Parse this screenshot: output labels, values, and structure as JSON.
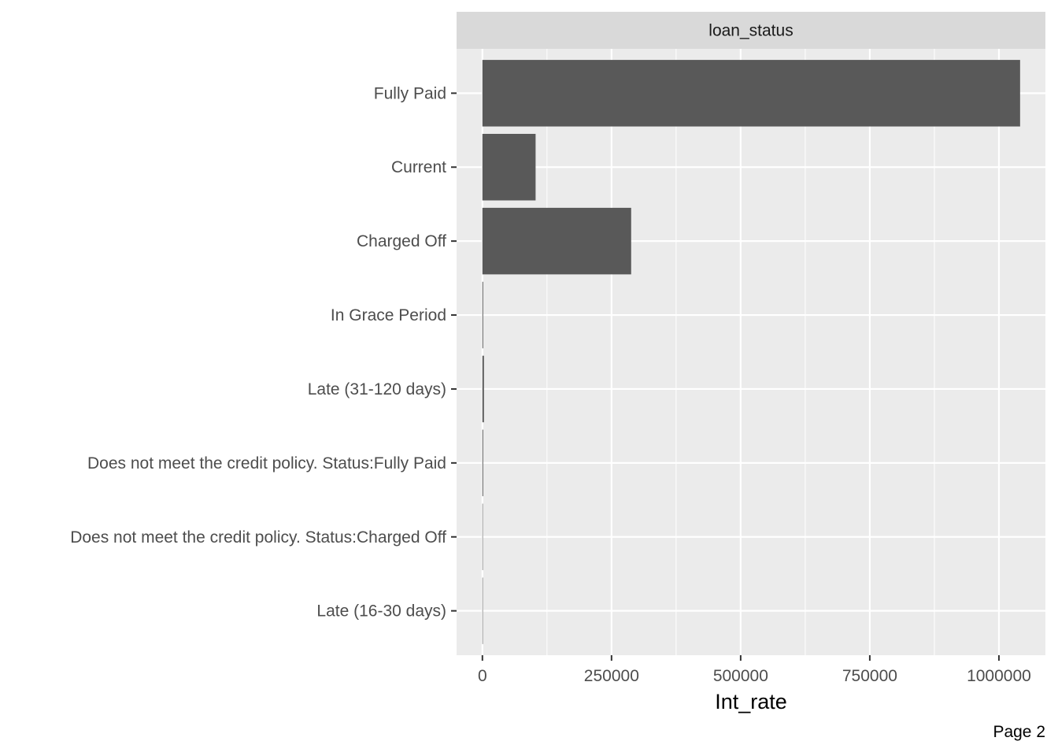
{
  "page_label": "Page 2",
  "chart_data": {
    "type": "bar",
    "orientation": "horizontal",
    "facet_label": "loan_status",
    "xlabel": "Int_rate",
    "ylabel": "",
    "categories": [
      "Fully Paid",
      "Current",
      "Charged Off",
      "In Grace Period",
      "Late (31-120 days)",
      "Does not meet the credit policy. Status:Fully Paid",
      "Does not meet the credit policy. Status:Charged Off",
      "Late (16-30 days)"
    ],
    "values": [
      1041000,
      103000,
      288000,
      1500,
      3000,
      1500,
      400,
      200
    ],
    "xlim": [
      -50000,
      1090000
    ],
    "x_ticks": [
      0,
      250000,
      500000,
      750000,
      1000000
    ],
    "x_tick_labels": [
      "0",
      "250000",
      "500000",
      "750000",
      "1000000"
    ],
    "grid": true,
    "colors": {
      "bar": "#595959",
      "panel": "#ebebeb",
      "grid": "#ffffff",
      "strip": "#d9d9d9"
    }
  }
}
